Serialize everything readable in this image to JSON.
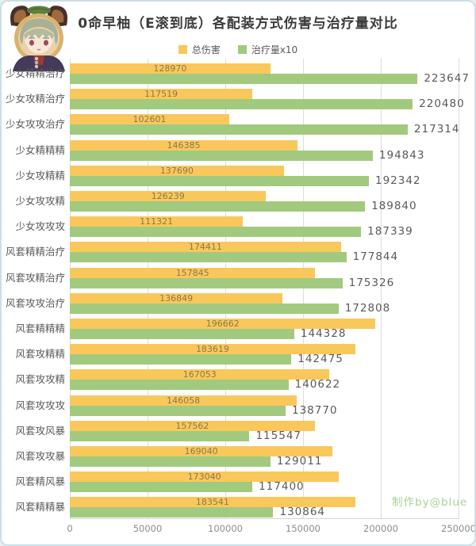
{
  "title": "0命早柚（E滚到底）各配装方式伤害与治疗量对比",
  "legend": [
    {
      "label": "总伤害",
      "color": "#fac75b"
    },
    {
      "label": "治疗量x10",
      "color": "#a1ca7e"
    }
  ],
  "watermark": "制作by@blue",
  "colors": {
    "damage_bar": "#fac75b",
    "healing_bar": "#a1ca7e",
    "damage_value_text": "#8a7a4a",
    "healing_value_text": "#595959",
    "watermark_text": "#a7d38e",
    "frame_border": "#c9dfe9"
  },
  "icons": {
    "avatar": "sayu-character-avatar"
  },
  "chart_data": {
    "type": "bar",
    "orientation": "horizontal",
    "title": "0命早柚（E滚到底）各配装方式伤害与治疗量对比",
    "categories": [
      "少女精精治疗",
      "少女攻精治疗",
      "少女攻攻治疗",
      "少女精精精",
      "少女攻精精",
      "少女攻攻精",
      "少女攻攻攻",
      "风套精精治疗",
      "风套攻精治疗",
      "风套攻攻治疗",
      "风套精精精",
      "风套攻精精",
      "风套攻攻精",
      "风套攻攻攻",
      "风套攻风暴",
      "风套攻攻暴",
      "风套精风暴",
      "风套精精暴"
    ],
    "series": [
      {
        "name": "总伤害",
        "color": "#fac75b",
        "values": [
          128970,
          117519,
          102601,
          146385,
          137690,
          126239,
          111321,
          174411,
          157845,
          136849,
          196662,
          183619,
          167053,
          146058,
          157562,
          169040,
          173040,
          183541
        ]
      },
      {
        "name": "治疗量x10",
        "color": "#a1ca7e",
        "values": [
          223647,
          220480,
          217314,
          194843,
          192342,
          189840,
          187339,
          177844,
          175326,
          172808,
          144328,
          142475,
          140622,
          138770,
          115547,
          129011,
          117400,
          130864
        ]
      }
    ],
    "xlabel": "",
    "ylabel": "",
    "xlim": [
      0,
      250000
    ],
    "xticks": [
      0,
      50000,
      100000,
      150000,
      200000,
      250000
    ],
    "grid": true,
    "legend_position": "top"
  }
}
